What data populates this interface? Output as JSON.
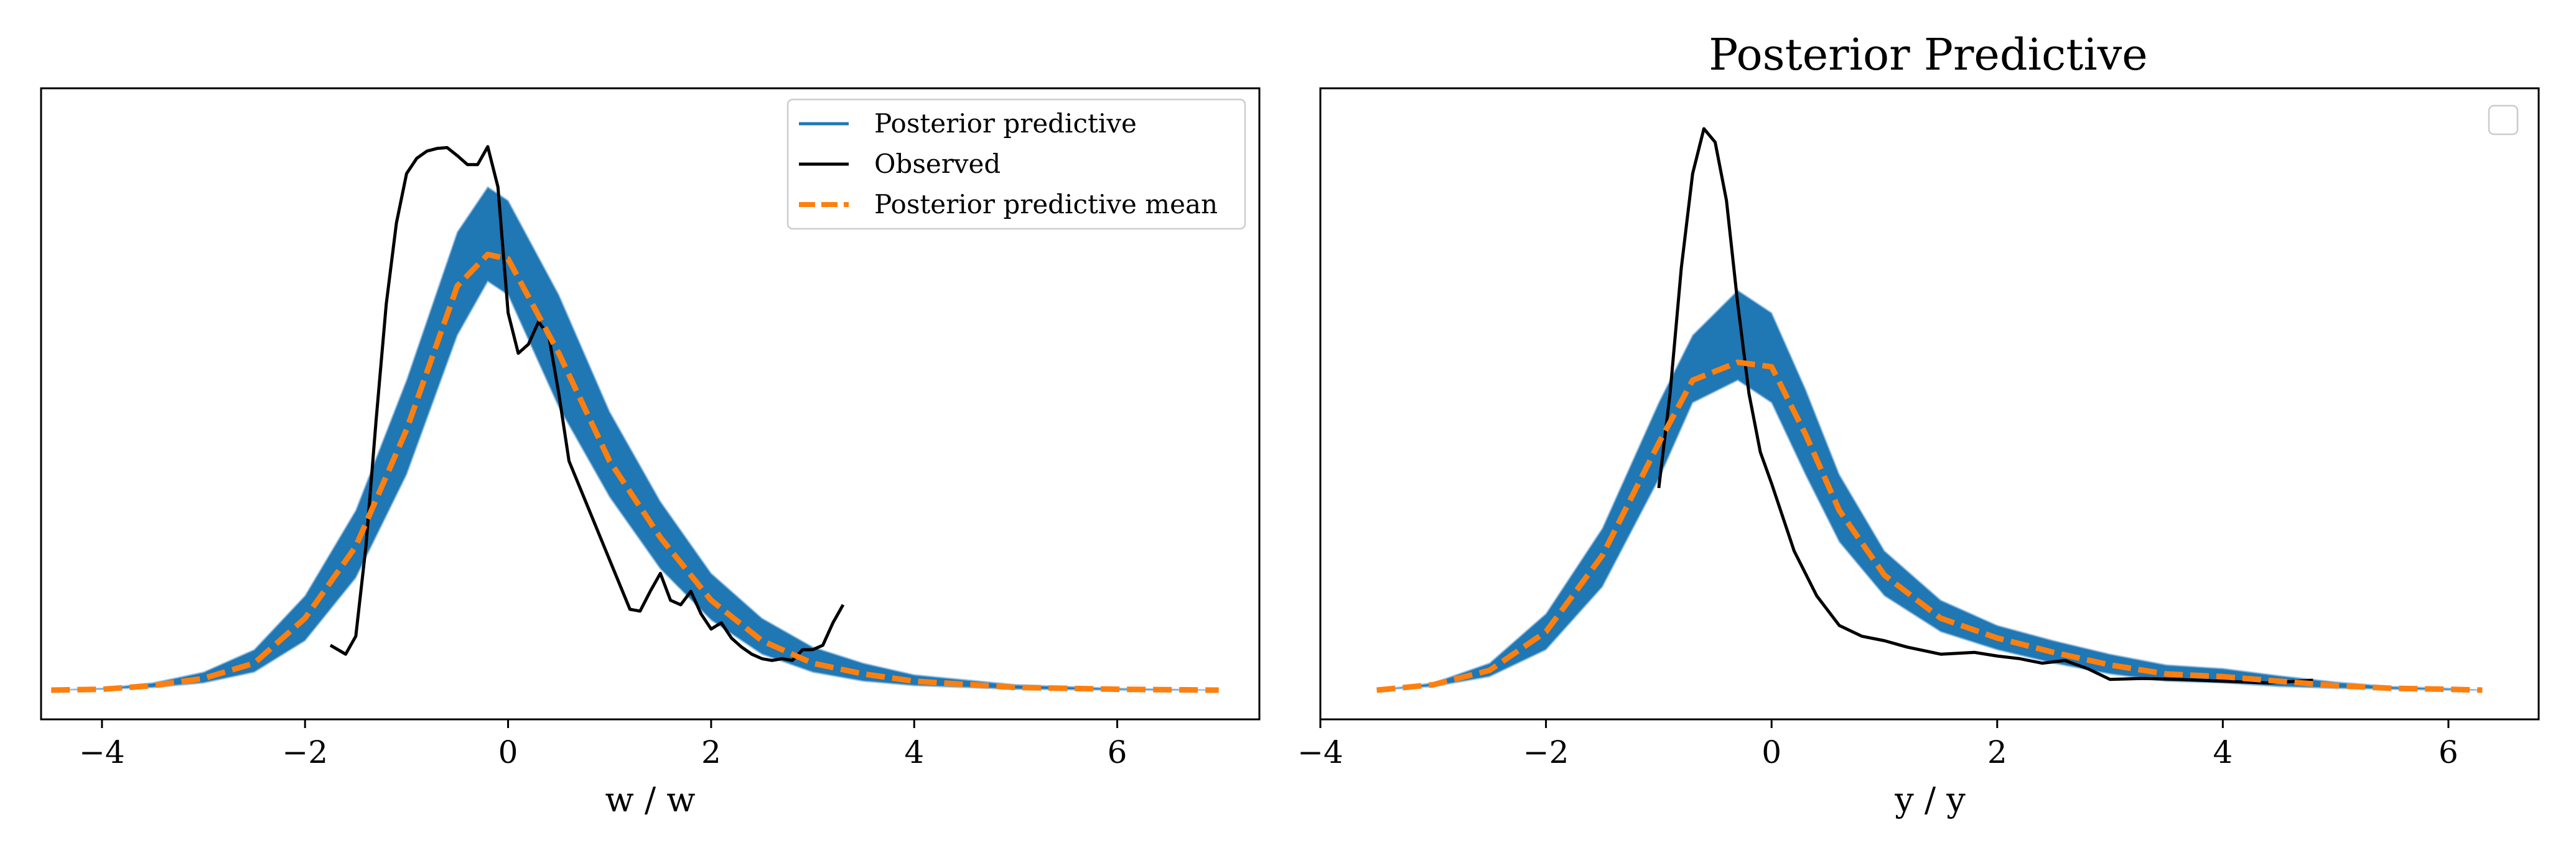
{
  "charts": [
    {
      "id": "left",
      "title": "",
      "xlabel": "w / w",
      "xlim": [
        -4.6,
        7.4
      ],
      "ylim": [
        0,
        0.67
      ],
      "xticks": [
        -4,
        -2,
        0,
        2,
        4,
        6
      ],
      "xtick_labels": [
        "−4",
        "−2",
        "0",
        "2",
        "4",
        "6"
      ],
      "legend": {
        "position": "top-right",
        "entries": [
          {
            "label": "Posterior predictive",
            "style": "solid",
            "color": "#1f77b4"
          },
          {
            "label": "Observed",
            "style": "solid",
            "color": "#000000"
          },
          {
            "label": "Posterior predictive mean",
            "style": "dashed",
            "color": "#ff7f0e"
          }
        ]
      }
    },
    {
      "id": "right",
      "title": "Posterior Predictive",
      "xlabel": "y / y",
      "xlim": [
        -4.0,
        6.8
      ],
      "ylim": [
        0,
        0.67
      ],
      "xticks": [
        -4,
        -2,
        0,
        2,
        4,
        6
      ],
      "xtick_labels": [
        "−4",
        "−2",
        "0",
        "2",
        "4",
        "6"
      ],
      "legend": {
        "position": "top-right",
        "entries": []
      }
    }
  ],
  "chart_data": [
    {
      "type": "line",
      "title": "",
      "xlabel": "w / w",
      "ylabel": "",
      "xlim": [
        -4.6,
        7.4
      ],
      "grid": false,
      "legend_position": "top-right",
      "series": [
        {
          "name": "Posterior predictive",
          "kind": "band",
          "color": "#1f77b4",
          "x": [
            -4.5,
            -4.0,
            -3.5,
            -3.0,
            -2.5,
            -2.0,
            -1.5,
            -1.0,
            -0.5,
            -0.2,
            0.0,
            0.5,
            1.0,
            1.5,
            2.0,
            2.5,
            3.0,
            3.5,
            4.0,
            5.0,
            6.0,
            7.0
          ],
          "lower": [
            0.0,
            0.001,
            0.003,
            0.008,
            0.02,
            0.055,
            0.125,
            0.24,
            0.395,
            0.455,
            0.44,
            0.315,
            0.215,
            0.135,
            0.078,
            0.04,
            0.02,
            0.01,
            0.005,
            0.001,
            0.0,
            0.0
          ],
          "upper": [
            0.0,
            0.002,
            0.008,
            0.02,
            0.045,
            0.105,
            0.2,
            0.345,
            0.51,
            0.56,
            0.545,
            0.44,
            0.31,
            0.21,
            0.13,
            0.08,
            0.048,
            0.03,
            0.017,
            0.006,
            0.002,
            0.0
          ]
        },
        {
          "name": "Observed",
          "color": "#000000",
          "x": [
            -1.75,
            -1.6,
            -1.5,
            -1.4,
            -1.3,
            -1.2,
            -1.1,
            -1.0,
            -0.9,
            -0.8,
            -0.7,
            -0.6,
            -0.5,
            -0.4,
            -0.3,
            -0.2,
            -0.1,
            0.0,
            0.1,
            0.2,
            0.3,
            0.4,
            0.5,
            0.6,
            0.8,
            1.0,
            1.2,
            1.3,
            1.4,
            1.5,
            1.6,
            1.7,
            1.8,
            1.9,
            2.0,
            2.1,
            2.2,
            2.3,
            2.4,
            2.5,
            2.6,
            2.7,
            2.8,
            2.9,
            3.0,
            3.1,
            3.2,
            3.3
          ],
          "y": [
            0.05,
            0.04,
            0.06,
            0.16,
            0.3,
            0.43,
            0.52,
            0.575,
            0.592,
            0.6,
            0.603,
            0.604,
            0.595,
            0.585,
            0.585,
            0.605,
            0.56,
            0.42,
            0.375,
            0.385,
            0.41,
            0.395,
            0.33,
            0.255,
            0.2,
            0.145,
            0.09,
            0.088,
            0.11,
            0.13,
            0.1,
            0.095,
            0.11,
            0.085,
            0.068,
            0.075,
            0.058,
            0.048,
            0.04,
            0.035,
            0.033,
            0.035,
            0.033,
            0.045,
            0.045,
            0.05,
            0.075,
            0.095
          ]
        },
        {
          "name": "Posterior predictive mean",
          "style": "dashed",
          "color": "#ff7f0e",
          "x": [
            -4.5,
            -4.0,
            -3.5,
            -3.0,
            -2.5,
            -2.0,
            -1.5,
            -1.0,
            -0.5,
            -0.2,
            0.0,
            0.5,
            1.0,
            1.5,
            2.0,
            2.5,
            3.0,
            3.5,
            4.0,
            5.0,
            6.0,
            7.0
          ],
          "y": [
            0.0,
            0.001,
            0.005,
            0.013,
            0.03,
            0.08,
            0.16,
            0.29,
            0.45,
            0.485,
            0.48,
            0.375,
            0.255,
            0.17,
            0.1,
            0.055,
            0.03,
            0.018,
            0.01,
            0.003,
            0.001,
            0.0
          ]
        }
      ]
    },
    {
      "type": "line",
      "title": "Posterior Predictive",
      "xlabel": "y / y",
      "ylabel": "",
      "xlim": [
        -4.0,
        6.8
      ],
      "grid": false,
      "legend_position": "top-right",
      "series": [
        {
          "kind": "band",
          "color": "#1f77b4",
          "x": [
            -3.5,
            -3.0,
            -2.5,
            -2.0,
            -1.5,
            -1.0,
            -0.7,
            -0.3,
            0.0,
            0.3,
            0.6,
            1.0,
            1.5,
            2.0,
            2.5,
            3.0,
            3.5,
            4.0,
            4.5,
            5.0,
            5.5,
            6.0,
            6.3
          ],
          "lower": [
            0.0,
            0.004,
            0.015,
            0.045,
            0.115,
            0.235,
            0.32,
            0.345,
            0.32,
            0.24,
            0.165,
            0.105,
            0.065,
            0.045,
            0.03,
            0.018,
            0.01,
            0.008,
            0.004,
            0.002,
            0.001,
            0.0,
            0.0
          ],
          "upper": [
            0.0,
            0.008,
            0.03,
            0.085,
            0.18,
            0.32,
            0.395,
            0.445,
            0.42,
            0.335,
            0.24,
            0.155,
            0.1,
            0.072,
            0.055,
            0.04,
            0.028,
            0.024,
            0.016,
            0.009,
            0.004,
            0.002,
            0.0
          ]
        },
        {
          "color": "#000000",
          "x": [
            -1.0,
            -0.9,
            -0.8,
            -0.7,
            -0.6,
            -0.5,
            -0.4,
            -0.3,
            -0.2,
            -0.1,
            0.0,
            0.2,
            0.4,
            0.6,
            0.8,
            1.0,
            1.2,
            1.5,
            1.8,
            2.0,
            2.2,
            2.4,
            2.6,
            2.8,
            3.0,
            3.3,
            3.6,
            4.0,
            4.4,
            4.8
          ],
          "y": [
            0.225,
            0.33,
            0.47,
            0.575,
            0.625,
            0.61,
            0.545,
            0.43,
            0.33,
            0.265,
            0.23,
            0.155,
            0.105,
            0.072,
            0.06,
            0.055,
            0.048,
            0.04,
            0.042,
            0.038,
            0.035,
            0.03,
            0.033,
            0.024,
            0.012,
            0.013,
            0.012,
            0.01,
            0.008,
            0.011
          ]
        },
        {
          "style": "dashed",
          "color": "#ff7f0e",
          "x": [
            -3.5,
            -3.0,
            -2.5,
            -2.0,
            -1.5,
            -1.0,
            -0.7,
            -0.3,
            0.0,
            0.3,
            0.6,
            1.0,
            1.5,
            2.0,
            2.5,
            3.0,
            3.5,
            4.0,
            4.5,
            5.0,
            5.5,
            6.0,
            6.3
          ],
          "y": [
            0.0,
            0.006,
            0.022,
            0.065,
            0.15,
            0.275,
            0.345,
            0.365,
            0.36,
            0.285,
            0.2,
            0.128,
            0.08,
            0.058,
            0.042,
            0.028,
            0.018,
            0.015,
            0.01,
            0.005,
            0.002,
            0.001,
            0.0
          ]
        }
      ]
    }
  ]
}
